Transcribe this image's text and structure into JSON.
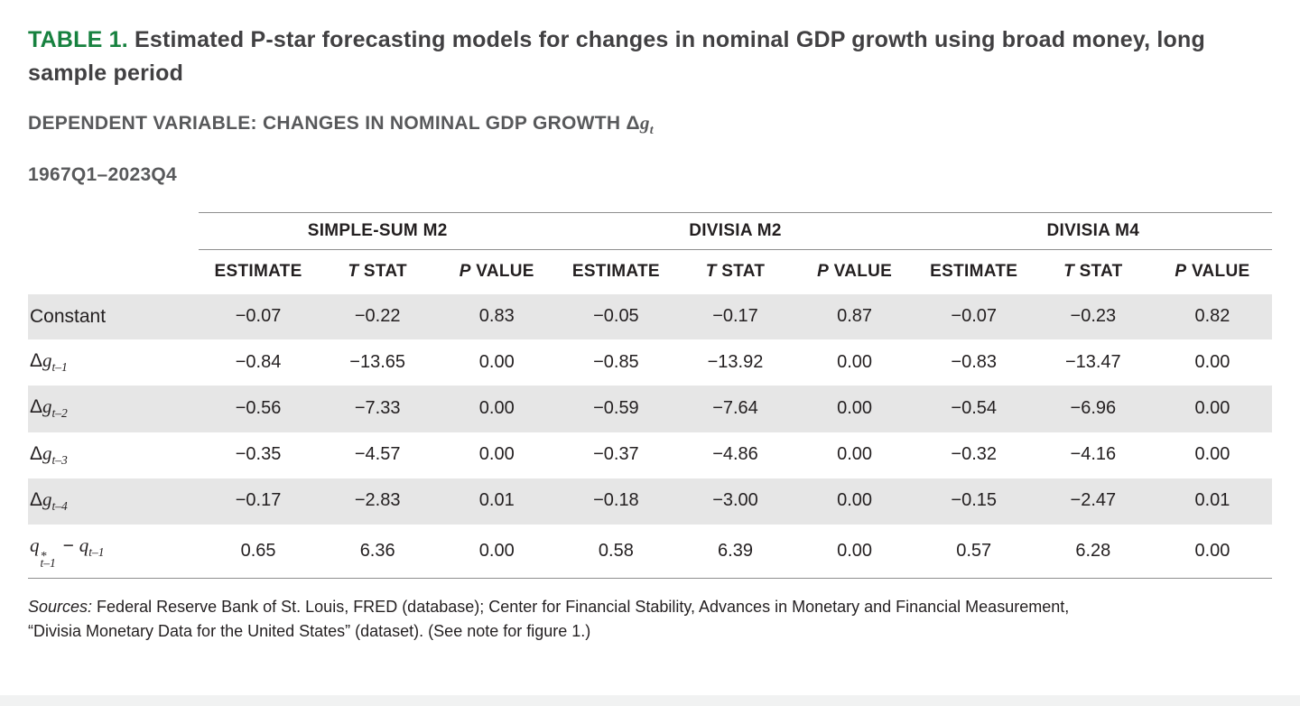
{
  "title": {
    "label": "TABLE 1.",
    "text": " Estimated P-star forecasting models for changes in nominal GDP growth using broad money, long sample period"
  },
  "subtitle": {
    "text": "DEPENDENT VARIABLE: CHANGES IN NOMINAL GDP GROWTH ",
    "delta": "Δ",
    "var": "g",
    "sub": "t"
  },
  "period": "1967Q1–2023Q4",
  "table": {
    "group_headers": [
      "SIMPLE-SUM M2",
      "DIVISIA M2",
      "DIVISIA M4"
    ],
    "sub_headers": [
      {
        "i": "",
        "t": "ESTIMATE"
      },
      {
        "i": "T",
        "t": " STAT"
      },
      {
        "i": "P",
        "t": " VALUE"
      }
    ],
    "rows": [
      {
        "label": {
          "text": "Constant"
        },
        "values": [
          "−0.07",
          "−0.22",
          "0.83",
          "−0.05",
          "−0.17",
          "0.87",
          "−0.07",
          "−0.23",
          "0.82"
        ]
      },
      {
        "label": {
          "delta": "Δ",
          "var": "g",
          "sub": "t–1"
        },
        "values": [
          "−0.84",
          "−13.65",
          "0.00",
          "−0.85",
          "−13.92",
          "0.00",
          "−0.83",
          "−13.47",
          "0.00"
        ]
      },
      {
        "label": {
          "delta": "Δ",
          "var": "g",
          "sub": "t–2"
        },
        "values": [
          "−0.56",
          "−7.33",
          "0.00",
          "−0.59",
          "−7.64",
          "0.00",
          "−0.54",
          "−6.96",
          "0.00"
        ]
      },
      {
        "label": {
          "delta": "Δ",
          "var": "g",
          "sub": "t–3"
        },
        "values": [
          "−0.35",
          "−4.57",
          "0.00",
          "−0.37",
          "−4.86",
          "0.00",
          "−0.32",
          "−4.16",
          "0.00"
        ]
      },
      {
        "label": {
          "delta": "Δ",
          "var": "g",
          "sub": "t–4"
        },
        "values": [
          "−0.17",
          "−2.83",
          "0.01",
          "−0.18",
          "−3.00",
          "0.00",
          "−0.15",
          "−2.47",
          "0.01"
        ]
      },
      {
        "label": {
          "var1": "q",
          "sup": "*",
          "sub1": "t–1",
          "op": " − ",
          "var2": "q",
          "sub2": "t–1"
        },
        "values": [
          "0.65",
          "6.36",
          "0.00",
          "0.58",
          "6.39",
          "0.00",
          "0.57",
          "6.28",
          "0.00"
        ]
      }
    ]
  },
  "sources": {
    "label": "Sources:",
    "line1_rest": " Federal Reserve Bank of St. Louis, FRED (database); Center for Financial Stability, Advances in Monetary and Financial Measurement,",
    "line2": "“Divisia Monetary Data for the United States” (dataset). (See note for figure 1.)"
  },
  "colors": {
    "accent_green": "#17813f",
    "title_gray": "#414042",
    "subtitle_gray": "#58595b",
    "zebra_gray": "#e6e6e6",
    "rule_gray": "#8e8e8e",
    "text_black": "#231f20"
  }
}
